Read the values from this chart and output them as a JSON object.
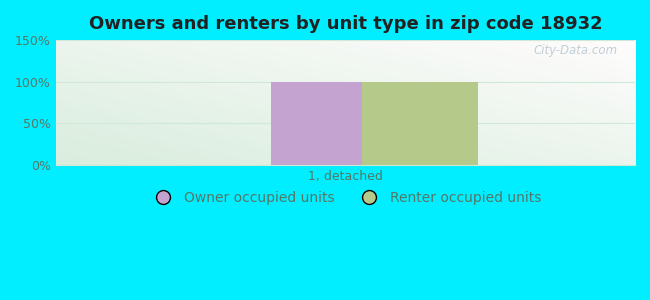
{
  "title": "Owners and renters by unit type in zip code 18932",
  "categories": [
    "1, detached"
  ],
  "owner_values": [
    100
  ],
  "renter_values": [
    100
  ],
  "owner_color": "#c4a3d0",
  "renter_color": "#b5c98a",
  "ylim": [
    0,
    150
  ],
  "yticks": [
    0,
    50,
    100,
    150
  ],
  "ytick_labels": [
    "0%",
    "50%",
    "100%",
    "150%"
  ],
  "owner_label": "Owner occupied units",
  "renter_label": "Renter occupied units",
  "background_outer": "#00eeff",
  "watermark": "City-Data.com",
  "bar_width": 0.28,
  "bar_gap": 0.08,
  "title_fontsize": 13,
  "tick_fontsize": 9,
  "legend_fontsize": 10,
  "tick_color": "#557766",
  "grid_color": "#d0e8d8"
}
